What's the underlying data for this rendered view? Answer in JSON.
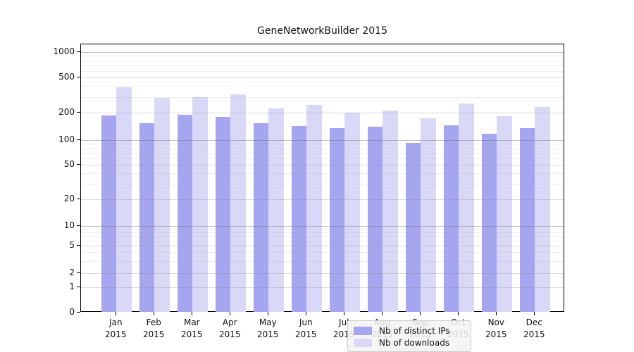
{
  "title": "GeneNetworkBuilder 2015",
  "chart_data": {
    "type": "bar",
    "title": "GeneNetworkBuilder 2015",
    "categories": [
      "Jan 2015",
      "Feb 2015",
      "Mar 2015",
      "Apr 2015",
      "May 2015",
      "Jun 2015",
      "Jul 2015",
      "Aug 2015",
      "Sep 2015",
      "Oct 2015",
      "Nov 2015",
      "Dec 2015"
    ],
    "series": [
      {
        "name": "Nb of distinct IPs",
        "color": "#a5a5f0",
        "values": [
          185,
          152,
          190,
          180,
          153,
          143,
          135,
          140,
          93,
          145,
          117,
          135
        ]
      },
      {
        "name": "Nb of downloads",
        "color": "#d9d9f7",
        "values": [
          385,
          295,
          300,
          325,
          225,
          245,
          200,
          210,
          173,
          255,
          182,
          232
        ]
      }
    ],
    "yscale": "log-like",
    "yticks": [
      0,
      1,
      2,
      5,
      10,
      20,
      50,
      100,
      200,
      500,
      1000
    ],
    "ytick_labels": [
      "0",
      "1",
      "2",
      "5",
      "10",
      "20",
      "50",
      "100",
      "200",
      "500",
      "1000"
    ],
    "ylim": [
      0,
      1300
    ],
    "grid": true,
    "legend_position": "inside lower-center"
  },
  "colors": {
    "bar_distinct_ips": "#a5a5f0",
    "bar_downloads": "#d9d9f7",
    "background": "#ffffff",
    "spine": "#000000",
    "grid_major": "#bdbdbd",
    "grid_minor": "#e9e9e9"
  }
}
